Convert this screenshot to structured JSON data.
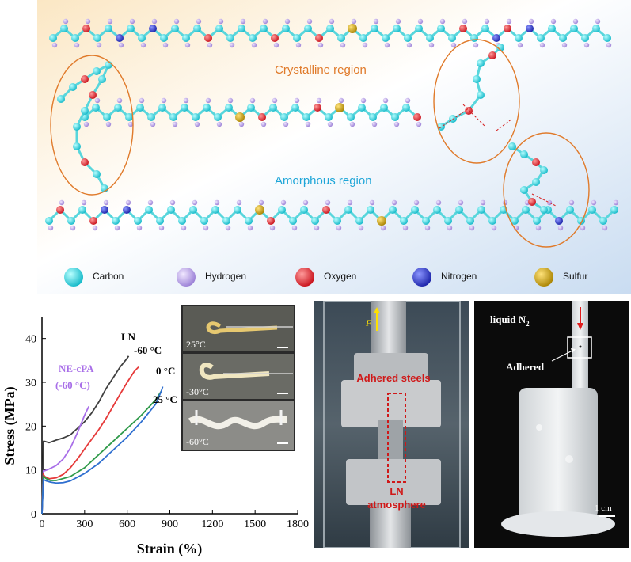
{
  "molecule_panel": {
    "crystalline_label": "Crystalline region",
    "amorphous_label": "Amorphous region",
    "crystalline_color": "#e07a2a",
    "amorphous_color": "#1fa6d8",
    "atoms": [
      {
        "name": "Carbon",
        "color": "#2ee0e0"
      },
      {
        "name": "Hydrogen",
        "color": "#b79ce8"
      },
      {
        "name": "Oxygen",
        "color": "#e8242a"
      },
      {
        "name": "Nitrogen",
        "color": "#2233cc"
      },
      {
        "name": "Sulfur",
        "color": "#c9a10a"
      }
    ]
  },
  "chart_data": {
    "type": "line",
    "title": "",
    "xlabel": "Strain (%)",
    "ylabel": "Stress (MPa)",
    "xlim": [
      0,
      1800
    ],
    "ylim": [
      0,
      45
    ],
    "xticks": [
      0,
      300,
      600,
      900,
      1200,
      1500,
      1800
    ],
    "yticks": [
      0,
      10,
      20,
      30,
      40
    ],
    "series": [
      {
        "name": "LN",
        "color": "#404040",
        "x": [
          0,
          10,
          20,
          50,
          100,
          150,
          200,
          250,
          300,
          350,
          400,
          450,
          500,
          550,
          600,
          610
        ],
        "y": [
          0,
          16.5,
          16.5,
          16.2,
          16.8,
          17.3,
          18.0,
          19.5,
          21.0,
          23.0,
          25.5,
          28.5,
          31.0,
          33.5,
          35.5,
          36.0
        ]
      },
      {
        "name": "NE-cPA (-60 °C)",
        "color": "#a86ee8",
        "x": [
          0,
          10,
          20,
          50,
          100,
          150,
          200,
          250,
          300,
          330
        ],
        "y": [
          0,
          9.8,
          9.8,
          10.2,
          11.0,
          12.5,
          15.0,
          18.5,
          22.5,
          24.5
        ]
      },
      {
        "name": "-60 °C",
        "color": "#e63a3a",
        "x": [
          0,
          10,
          20,
          50,
          100,
          150,
          200,
          250,
          300,
          350,
          400,
          450,
          500,
          550,
          600,
          650,
          680
        ],
        "y": [
          0,
          9.0,
          8.5,
          8.0,
          8.2,
          9.0,
          10.5,
          12.5,
          14.8,
          17.0,
          19.2,
          21.7,
          24.5,
          27.3,
          30.0,
          32.5,
          33.5
        ]
      },
      {
        "name": "25 °C",
        "color": "#2f9a4a",
        "x": [
          0,
          10,
          30,
          60,
          100,
          200,
          300,
          400,
          500,
          600,
          700,
          800,
          840
        ],
        "y": [
          0,
          8.5,
          8.0,
          7.6,
          7.6,
          8.5,
          10.5,
          13.5,
          16.5,
          19.5,
          22.5,
          26.0,
          28.0
        ]
      },
      {
        "name": "0 °C",
        "color": "#2f6fd0",
        "x": [
          0,
          10,
          30,
          60,
          100,
          150,
          200,
          300,
          400,
          500,
          600,
          700,
          800,
          840,
          850
        ],
        "y": [
          0,
          7.8,
          7.5,
          7.2,
          7.0,
          7.1,
          7.5,
          9.2,
          11.5,
          14.5,
          17.5,
          21.0,
          25.0,
          28.0,
          29.0
        ]
      }
    ],
    "annotations": {
      "ln": "LN",
      "m60": "-60 °C",
      "zero": "0 °C",
      "twentyfive": "25 °C",
      "ne_line1": "NE-cPA",
      "ne_line2": "(-60 °C)"
    },
    "inset": {
      "labels": [
        "25°C",
        "-30°C",
        "-60°C"
      ]
    }
  },
  "photo_mid": {
    "force_label": "F",
    "adhered_steels": "Adhered steels",
    "ln_line1": "LN",
    "ln_line2": "atmosphere"
  },
  "photo_right": {
    "liquid_n2": "liquid N",
    "liquid_n2_sub": "2",
    "adhered": "Adhered",
    "scale": "1 cm"
  }
}
